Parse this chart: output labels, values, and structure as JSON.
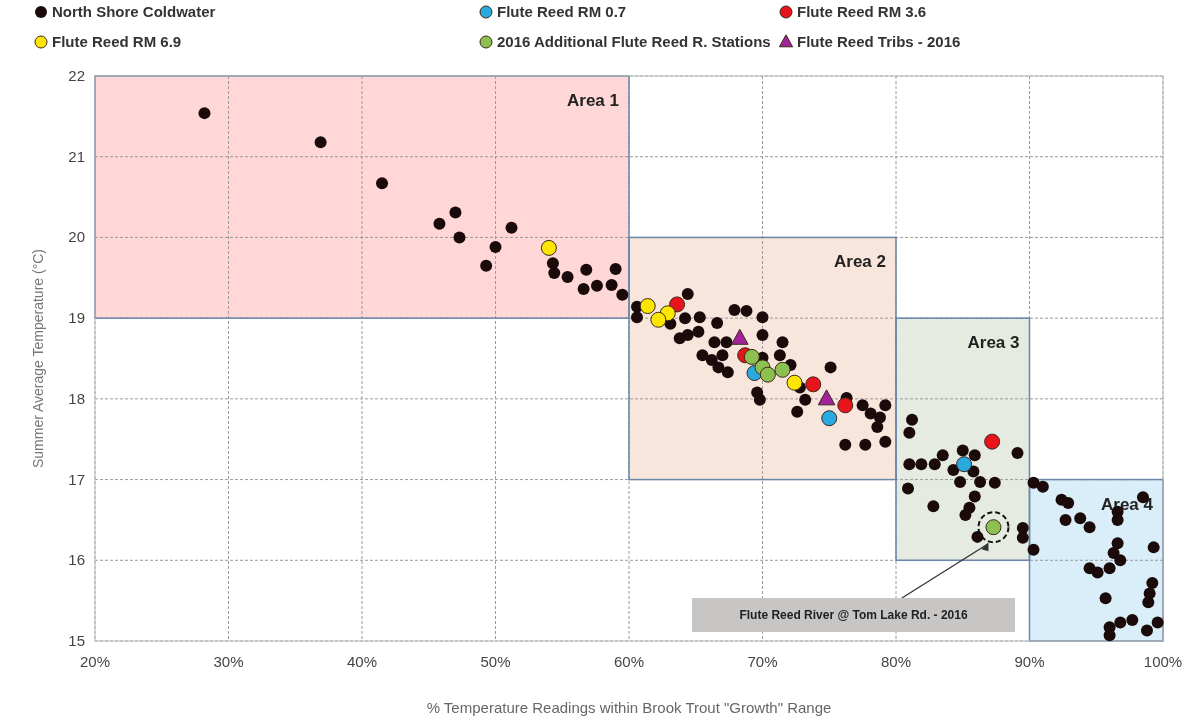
{
  "chart_data": {
    "type": "scatter",
    "xlabel": "% Temperature Readings within Brook Trout \"Growth\" Range",
    "ylabel": "Summer Average Temperature (°C)",
    "xlim": [
      20,
      100
    ],
    "ylim": [
      15,
      22
    ],
    "xticks": [
      {
        "value": 20,
        "label": "20%"
      },
      {
        "value": 30,
        "label": "30%"
      },
      {
        "value": 40,
        "label": "40%"
      },
      {
        "value": 50,
        "label": "50%"
      },
      {
        "value": 60,
        "label": "60%"
      },
      {
        "value": 70,
        "label": "70%"
      },
      {
        "value": 80,
        "label": "80%"
      },
      {
        "value": 90,
        "label": "90%"
      },
      {
        "value": 100,
        "label": "100%"
      }
    ],
    "yticks": [
      15,
      16,
      17,
      18,
      19,
      20,
      21,
      22
    ],
    "grid": true,
    "legend": "top",
    "marker": "circle",
    "bands": [
      {
        "axis": "x",
        "from": 20,
        "to": 60,
        "label": "Area 1",
        "color": "#ffd7d7"
      },
      {
        "axis": "x",
        "from": 60,
        "to": 80,
        "label": "Area 2",
        "color": "#f8e5dc"
      },
      {
        "axis": "x",
        "from": 80,
        "to": 90,
        "label": "Area 3",
        "color": "#e5ebe0"
      },
      {
        "axis": "x",
        "from": 90,
        "to": 100,
        "label": "Area 4",
        "color": "#d9eef8"
      }
    ],
    "annotations": [
      "Flute Reed River @ Tom Lake Rd. - 2016"
    ],
    "series": [
      {
        "name": "North Shore Coldwater",
        "color": "#1a0a0a",
        "x": [
          28.2,
          36.9,
          41.5,
          45.8,
          47.0,
          47.3,
          50.0,
          49.3,
          51.2,
          54.3,
          54.4,
          55.4,
          56.8,
          56.6,
          57.6,
          59.0,
          58.7,
          59.5,
          60.6,
          60.6,
          64.4,
          64.2,
          63.1,
          63.8,
          64.4,
          65.2,
          65.3,
          66.6,
          66.4,
          67.3,
          67.9,
          68.8,
          70.0,
          70.0,
          71.5,
          71.3,
          72.1,
          70.0,
          65.5,
          66.2,
          67.0,
          66.7,
          67.4,
          69.6,
          69.8,
          75.1,
          72.8,
          73.2,
          72.6,
          76.3,
          77.5,
          78.1,
          79.2,
          78.8,
          78.6,
          76.2,
          77.7,
          79.2,
          81.2,
          81.0,
          81.0,
          81.9,
          82.9,
          83.5,
          85.0,
          85.9,
          84.3,
          85.8,
          84.8,
          86.3,
          87.4,
          89.1,
          80.9,
          85.9,
          82.8,
          85.5,
          85.2,
          86.1,
          89.5,
          89.5,
          90.3,
          91.0,
          90.3,
          92.4,
          92.9,
          92.7,
          93.8,
          94.5,
          98.5,
          96.6,
          96.6,
          96.6,
          96.3,
          96.8,
          99.3,
          94.5,
          95.1,
          96.0,
          99.2,
          99.0,
          98.9,
          95.7,
          96.0,
          96.0,
          96.8,
          97.7,
          98.8,
          99.6
        ],
        "values": [
          21.54,
          21.18,
          20.67,
          20.17,
          20.31,
          20.0,
          19.88,
          19.65,
          20.12,
          19.68,
          19.56,
          19.51,
          19.6,
          19.36,
          19.4,
          19.61,
          19.41,
          19.29,
          19.14,
          19.01,
          19.3,
          19.0,
          18.93,
          18.75,
          18.79,
          18.83,
          19.01,
          18.94,
          18.7,
          18.7,
          19.1,
          19.09,
          19.01,
          18.79,
          18.7,
          18.54,
          18.42,
          18.51,
          18.54,
          18.48,
          18.54,
          18.39,
          18.33,
          18.08,
          17.99,
          18.39,
          18.14,
          17.99,
          17.84,
          18.01,
          17.92,
          17.82,
          17.92,
          17.77,
          17.65,
          17.43,
          17.43,
          17.47,
          17.74,
          17.58,
          17.19,
          17.19,
          17.19,
          17.3,
          17.36,
          17.3,
          17.12,
          17.1,
          16.97,
          16.97,
          16.96,
          17.33,
          16.89,
          16.79,
          16.67,
          16.65,
          16.56,
          16.29,
          16.4,
          16.28,
          16.96,
          16.91,
          16.13,
          16.75,
          16.71,
          16.5,
          16.52,
          16.41,
          16.78,
          16.6,
          16.5,
          16.21,
          16.09,
          16.0,
          16.16,
          15.9,
          15.85,
          15.9,
          15.72,
          15.59,
          15.48,
          15.53,
          15.17,
          15.07,
          15.23,
          15.26,
          15.13,
          15.23
        ]
      },
      {
        "name": "Flute Reed RM 0.7",
        "color": "#29a9e0",
        "x": [
          69.4,
          75.0,
          85.1
        ],
        "values": [
          18.32,
          17.76,
          17.19
        ]
      },
      {
        "name": "Flute Reed RM 3.6",
        "color": "#e8141b",
        "x": [
          63.6,
          68.7,
          73.8,
          76.2,
          87.2
        ],
        "values": [
          19.17,
          18.54,
          18.18,
          17.92,
          17.47
        ]
      },
      {
        "name": "Flute Reed RM 6.9",
        "color": "#ffe600",
        "x": [
          54.0,
          61.4,
          62.9,
          62.2,
          72.4
        ],
        "values": [
          19.87,
          19.15,
          19.06,
          18.98,
          18.2
        ]
      },
      {
        "name": "2016 Additional Flute Reed R. Stations",
        "color": "#8cc152",
        "x": [
          69.2,
          70.0,
          70.4,
          71.5,
          87.3
        ],
        "values": [
          18.52,
          18.39,
          18.3,
          18.36,
          16.41
        ]
      },
      {
        "name": "Flute Reed Tribs - 2016",
        "color": "#a3229a",
        "marker": "triangle",
        "x": [
          68.3,
          74.8
        ],
        "values": [
          18.75,
          18.0
        ]
      }
    ]
  }
}
